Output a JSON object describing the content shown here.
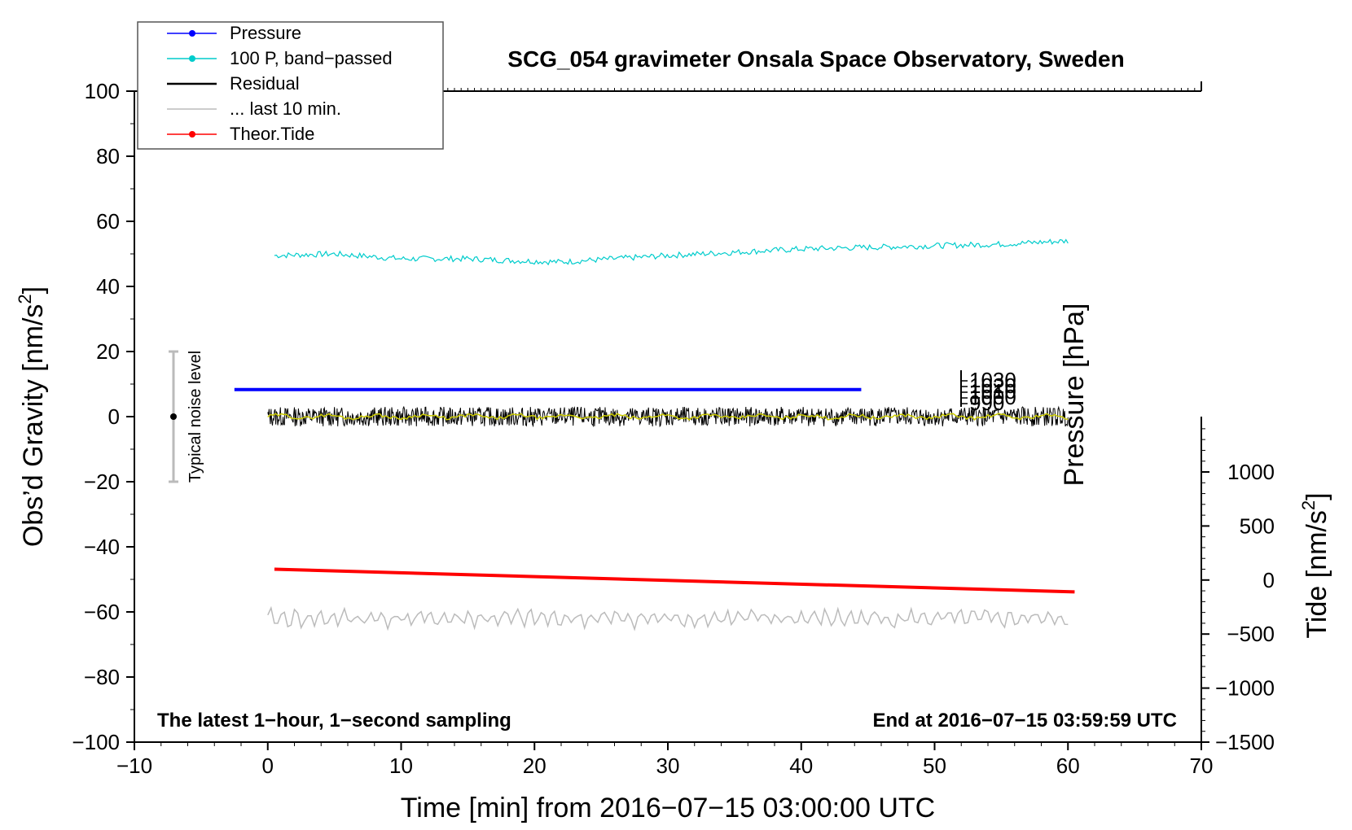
{
  "chart_data": {
    "type": "line",
    "title": "SCG_054 gravimeter Onsala Space Observatory, Sweden",
    "xlabel": "Time [min] from 2016−07−15 03:00:00 UTC",
    "ylabel_main": "Obs’d Gravity [nm/s",
    "ylabel_main_sup": "2",
    "ylabel_main_close": "]",
    "ylabel_pressure": "Pressure [hPa]",
    "ylabel_tide": "Tide [nm/s",
    "ylabel_tide_sup": "2",
    "ylabel_tide_close": "]",
    "xlim": [
      -10,
      70
    ],
    "ylim": [
      -100,
      100
    ],
    "tide_ylim": [
      -1500,
      1500
    ],
    "x_ticks": [
      "−10",
      "0",
      "10",
      "20",
      "30",
      "40",
      "50",
      "60",
      "70"
    ],
    "y_ticks": [
      "100",
      "80",
      "60",
      "40",
      "20",
      "0",
      "−20",
      "−40",
      "−60",
      "−80",
      "−100"
    ],
    "tide_ticks": [
      "1000",
      "500",
      "0",
      "−500",
      "−1000",
      "−1500"
    ],
    "legend": [
      {
        "label": "Pressure",
        "color": "#0000ff",
        "marker": true
      },
      {
        "label": "100 P, band−passed",
        "color": "#00cccc",
        "marker": true
      },
      {
        "label": "Residual",
        "color": "#000000",
        "marker": false
      },
      {
        "label": "... last 10 min.",
        "color": "#bbbbbb",
        "marker": false
      },
      {
        "label": "Theor.Tide",
        "color": "#ff0000",
        "marker": true
      }
    ],
    "series": [
      {
        "name": "Pressure",
        "color": "#0000ff",
        "x_start": -2.5,
        "x_end": 44.5,
        "y": 8.3
      },
      {
        "name": "100 P, band−passed",
        "color": "#00cccc",
        "x": [
          0.5,
          5,
          10,
          15,
          18,
          22,
          26,
          30,
          35,
          40,
          45,
          50,
          55,
          60
        ],
        "y": [
          49.5,
          50,
          48.5,
          48.5,
          48,
          47.5,
          48.5,
          49.5,
          50.5,
          51.5,
          52,
          52.5,
          53,
          54
        ]
      },
      {
        "name": "Residual",
        "color": "#000000",
        "x_start": 0,
        "x_end": 60,
        "y": 0,
        "amplitude": 3
      },
      {
        "name": "Residual smoothed",
        "color": "#cccc00",
        "x_start": 0,
        "x_end": 60,
        "y": 0,
        "amplitude": 1
      },
      {
        "name": "... last 10 min.",
        "color": "#bbbbbb",
        "x_start": 0,
        "x_end": 60,
        "y": -62,
        "amplitude": 3
      },
      {
        "name": "Theor.Tide",
        "color": "#ff0000",
        "axis": "tide",
        "x": [
          0.5,
          60.5
        ],
        "y": [
          100,
          -110
        ]
      }
    ],
    "pressure_tick_labels": [
      "1030",
      "1020",
      "1010",
      "1000",
      "990"
    ],
    "noise_bar": {
      "label": "Typical noise level",
      "x": -7,
      "center": 0,
      "range": [
        -20,
        20
      ]
    },
    "note_left": "The latest 1−hour, 1−second sampling",
    "note_right": "End at 2016−07−15 03:59:59 UTC"
  }
}
